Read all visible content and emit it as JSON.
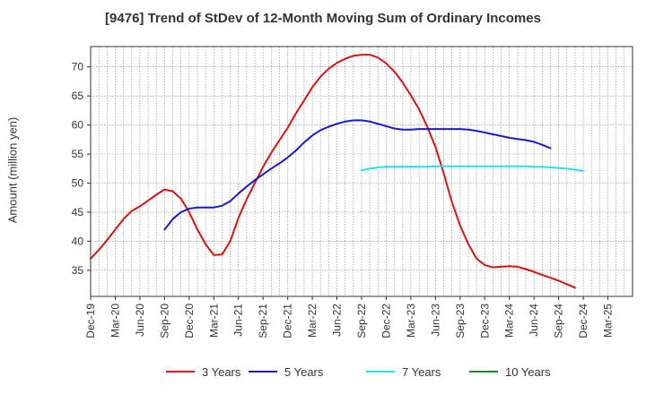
{
  "chart_data": {
    "type": "line",
    "title": "[9476]  Trend of StDev of 12-Month Moving Sum of Ordinary Incomes",
    "ylabel": "Amount (million yen)",
    "xlabel": "",
    "ylim": [
      30.5,
      73.5
    ],
    "yticks": [
      35,
      40,
      45,
      50,
      55,
      60,
      65,
      70
    ],
    "x_range_months": [
      0,
      66
    ],
    "xticks": [
      {
        "m": 0,
        "label": "Dec-19"
      },
      {
        "m": 3,
        "label": "Mar-20"
      },
      {
        "m": 6,
        "label": "Jun-20"
      },
      {
        "m": 9,
        "label": "Sep-20"
      },
      {
        "m": 12,
        "label": "Dec-20"
      },
      {
        "m": 15,
        "label": "Mar-21"
      },
      {
        "m": 18,
        "label": "Jun-21"
      },
      {
        "m": 21,
        "label": "Sep-21"
      },
      {
        "m": 24,
        "label": "Dec-21"
      },
      {
        "m": 27,
        "label": "Mar-22"
      },
      {
        "m": 30,
        "label": "Jun-22"
      },
      {
        "m": 33,
        "label": "Sep-22"
      },
      {
        "m": 36,
        "label": "Dec-22"
      },
      {
        "m": 39,
        "label": "Mar-23"
      },
      {
        "m": 42,
        "label": "Jun-23"
      },
      {
        "m": 45,
        "label": "Sep-23"
      },
      {
        "m": 48,
        "label": "Dec-23"
      },
      {
        "m": 51,
        "label": "Mar-24"
      },
      {
        "m": 54,
        "label": "Jun-24"
      },
      {
        "m": 57,
        "label": "Sep-24"
      },
      {
        "m": 60,
        "label": "Dec-24"
      },
      {
        "m": 63,
        "label": "Mar-25"
      }
    ],
    "grid": true,
    "legend_position": "bottom",
    "series": [
      {
        "name": "3 Years",
        "color": "#dd1111",
        "points": [
          [
            0,
            37.0
          ],
          [
            1,
            38.5
          ],
          [
            2,
            40.2
          ],
          [
            3,
            42.0
          ],
          [
            4,
            43.8
          ],
          [
            5,
            45.2
          ],
          [
            6,
            46.0
          ],
          [
            7,
            47.0
          ],
          [
            8,
            48.0
          ],
          [
            9,
            48.9
          ],
          [
            10,
            48.6
          ],
          [
            11,
            47.3
          ],
          [
            12,
            45.0
          ],
          [
            13,
            42.0
          ],
          [
            14,
            39.5
          ],
          [
            15,
            37.6
          ],
          [
            16,
            37.7
          ],
          [
            17,
            40.0
          ],
          [
            18,
            44.0
          ],
          [
            19,
            47.2
          ],
          [
            20,
            50.0
          ],
          [
            21,
            52.8
          ],
          [
            22,
            55.2
          ],
          [
            23,
            57.4
          ],
          [
            24,
            59.5
          ],
          [
            25,
            62.0
          ],
          [
            26,
            64.2
          ],
          [
            27,
            66.5
          ],
          [
            28,
            68.3
          ],
          [
            29,
            69.7
          ],
          [
            30,
            70.7
          ],
          [
            31,
            71.4
          ],
          [
            32,
            71.9
          ],
          [
            33,
            72.1
          ],
          [
            34,
            72.1
          ],
          [
            35,
            71.6
          ],
          [
            36,
            70.6
          ],
          [
            37,
            69.2
          ],
          [
            38,
            67.3
          ],
          [
            39,
            65.1
          ],
          [
            40,
            62.7
          ],
          [
            41,
            59.7
          ],
          [
            42,
            56.2
          ],
          [
            43,
            51.7
          ],
          [
            44,
            46.7
          ],
          [
            45,
            42.7
          ],
          [
            46,
            39.5
          ],
          [
            47,
            37.0
          ],
          [
            48,
            35.9
          ],
          [
            49,
            35.5
          ],
          [
            50,
            35.6
          ],
          [
            51,
            35.7
          ],
          [
            52,
            35.6
          ],
          [
            53,
            35.2
          ],
          [
            54,
            34.7
          ],
          [
            55,
            34.2
          ],
          [
            56,
            33.7
          ],
          [
            57,
            33.2
          ],
          [
            58,
            32.6
          ],
          [
            59,
            32.0
          ]
        ]
      },
      {
        "name": "5 Years",
        "color": "#1a1acc",
        "points": [
          [
            0,
            42.0
          ],
          [
            1,
            43.8
          ],
          [
            2,
            45.0
          ],
          [
            3,
            45.6
          ],
          [
            4,
            45.8
          ],
          [
            5,
            45.8
          ],
          [
            6,
            45.8
          ],
          [
            7,
            46.1
          ],
          [
            8,
            46.9
          ],
          [
            9,
            48.2
          ],
          [
            10,
            49.4
          ],
          [
            11,
            50.5
          ],
          [
            12,
            51.5
          ],
          [
            13,
            52.5
          ],
          [
            14,
            53.4
          ],
          [
            15,
            54.4
          ],
          [
            16,
            55.6
          ],
          [
            17,
            57.0
          ],
          [
            18,
            58.2
          ],
          [
            19,
            59.1
          ],
          [
            20,
            59.7
          ],
          [
            21,
            60.2
          ],
          [
            22,
            60.6
          ],
          [
            23,
            60.8
          ],
          [
            24,
            60.8
          ],
          [
            25,
            60.6
          ],
          [
            26,
            60.2
          ],
          [
            27,
            59.8
          ],
          [
            28,
            59.4
          ],
          [
            29,
            59.2
          ],
          [
            30,
            59.2
          ],
          [
            31,
            59.3
          ],
          [
            32,
            59.3
          ],
          [
            33,
            59.3
          ],
          [
            34,
            59.3
          ],
          [
            35,
            59.3
          ],
          [
            36,
            59.3
          ],
          [
            37,
            59.2
          ],
          [
            38,
            59.0
          ],
          [
            39,
            58.7
          ],
          [
            40,
            58.4
          ],
          [
            41,
            58.1
          ],
          [
            42,
            57.8
          ],
          [
            43,
            57.6
          ],
          [
            44,
            57.4
          ],
          [
            45,
            57.1
          ],
          [
            46,
            56.6
          ],
          [
            47,
            56.0
          ]
        ],
        "start_month": 9
      },
      {
        "name": "7 Years",
        "color": "#22e0ee",
        "points": [
          [
            0,
            52.2
          ],
          [
            1,
            52.5
          ],
          [
            2,
            52.7
          ],
          [
            3,
            52.8
          ],
          [
            4,
            52.8
          ],
          [
            5,
            52.8
          ],
          [
            6,
            52.8
          ],
          [
            7,
            52.8
          ],
          [
            8,
            52.8
          ],
          [
            9,
            52.9
          ],
          [
            10,
            52.9
          ],
          [
            11,
            52.9
          ],
          [
            12,
            52.9
          ],
          [
            13,
            52.9
          ],
          [
            14,
            52.9
          ],
          [
            15,
            52.9
          ],
          [
            16,
            52.9
          ],
          [
            17,
            52.9
          ],
          [
            18,
            52.9
          ],
          [
            19,
            52.9
          ],
          [
            20,
            52.9
          ],
          [
            21,
            52.8
          ],
          [
            22,
            52.8
          ],
          [
            23,
            52.7
          ],
          [
            24,
            52.6
          ],
          [
            25,
            52.5
          ],
          [
            26,
            52.3
          ],
          [
            27,
            52.1
          ]
        ],
        "start_month": 33
      },
      {
        "name": "10 Years",
        "color": "#1e8c1e",
        "points": []
      }
    ]
  }
}
